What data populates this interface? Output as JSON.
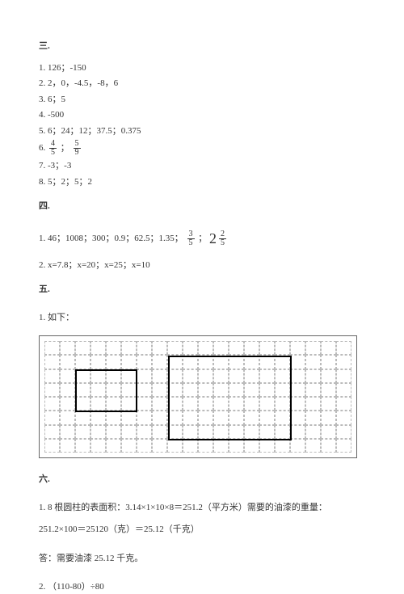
{
  "section3": {
    "title": "三.",
    "lines": [
      "1. 126；-150",
      "2. 2，0，-4.5，-8，6",
      "3. 6；5",
      "4. -500",
      "5. 6；24；12；37.5；0.375"
    ],
    "line6_prefix": "6.  ",
    "frac6a_num": "4",
    "frac6a_den": "5",
    "line6_mid": "  ；  ",
    "frac6b_num": "5",
    "frac6b_den": "9",
    "lines2": [
      "7. -3；-3",
      "8. 5；2；5；2"
    ]
  },
  "section4": {
    "title": "四.",
    "line1_prefix": "1. 46；1008；300；0.9；62.5；1.35；   ",
    "frac1_num": "3",
    "frac1_den": "5",
    "line1_mid": "  ；   ",
    "mixed_whole": "2",
    "frac2_num": "2",
    "frac2_den": "5",
    "line2": "2. x=7.8；x=20；x=25；x=10"
  },
  "section5": {
    "title": "五.",
    "line1": "1. 如下："
  },
  "grid": {
    "cols": 20,
    "rows": 8,
    "outer_w": 394,
    "outer_h": 152,
    "pad": 6,
    "rect1": {
      "col": 2,
      "row": 2,
      "w": 4,
      "h": 3
    },
    "rect2": {
      "col": 8,
      "row": 1,
      "w": 8,
      "h": 6
    }
  },
  "section6": {
    "title": "六.",
    "line1": "1. 8 根圆柱的表面积：3.14×1×10×8＝251.2（平方米）需要的油漆的重量：",
    "line2": "251.2×100＝25120（克）＝25.12（千克）",
    "line3": "答：需要油漆 25.12 千克。",
    "line4": "2. （110-80）÷80"
  }
}
